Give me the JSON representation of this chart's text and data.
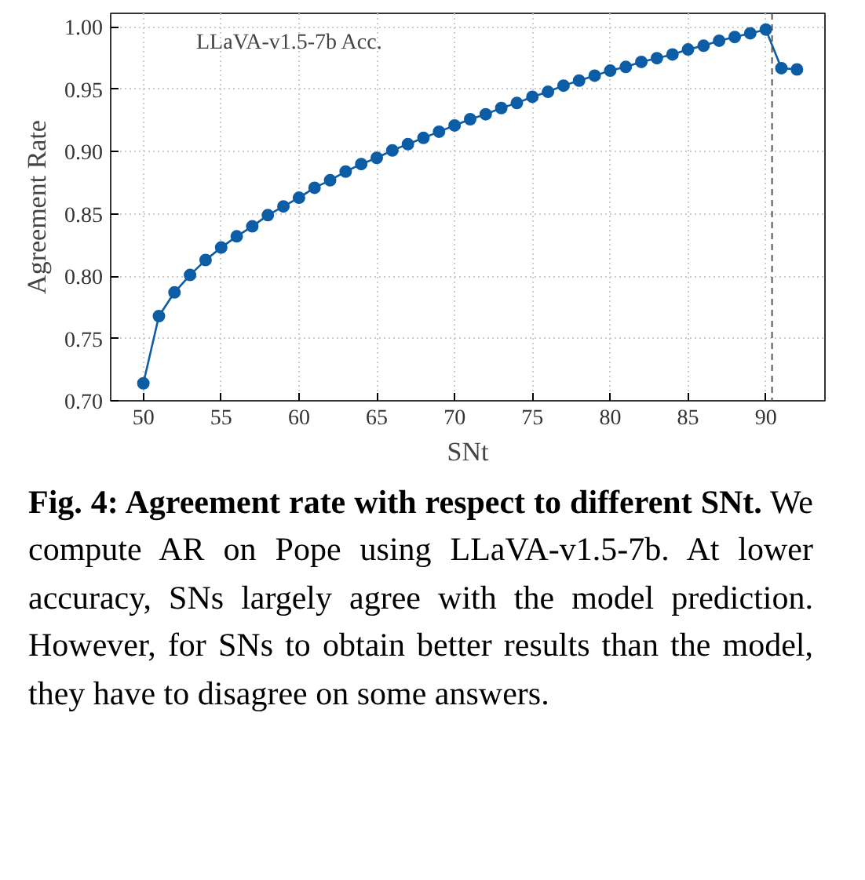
{
  "chart_data": {
    "type": "line",
    "xlabel": "SNt",
    "ylabel": "Agreement Rate",
    "x": [
      50,
      51,
      52,
      53,
      54,
      55,
      56,
      57,
      58,
      59,
      60,
      61,
      62,
      63,
      64,
      65,
      66,
      67,
      68,
      69,
      70,
      71,
      72,
      73,
      74,
      75,
      76,
      77,
      78,
      79,
      80,
      81,
      82,
      83,
      84,
      85,
      86,
      87,
      88,
      89,
      90,
      91,
      92
    ],
    "series": [
      {
        "color": "#0c5da5",
        "values": [
          0.714,
          0.768,
          0.787,
          0.801,
          0.813,
          0.823,
          0.832,
          0.84,
          0.849,
          0.856,
          0.863,
          0.871,
          0.877,
          0.884,
          0.89,
          0.895,
          0.901,
          0.906,
          0.911,
          0.916,
          0.921,
          0.926,
          0.93,
          0.935,
          0.939,
          0.944,
          0.948,
          0.953,
          0.957,
          0.961,
          0.965,
          0.968,
          0.972,
          0.975,
          0.978,
          0.982,
          0.985,
          0.989,
          0.992,
          0.995,
          0.998,
          0.967,
          0.966
        ]
      }
    ],
    "marker": "circle",
    "line_style": "solid",
    "xlim": [
      47.9,
      93.8
    ],
    "ylim": [
      0.7,
      1.011
    ],
    "xticks": [
      50,
      55,
      60,
      65,
      70,
      75,
      80,
      85,
      90
    ],
    "yticks": [
      {
        "value": 0.7,
        "label": "0.70"
      },
      0.75,
      {
        "value": 0.8,
        "label": "0.80"
      },
      0.85,
      {
        "value": 0.9,
        "label": "0.90"
      },
      0.95,
      {
        "value": 1.0,
        "label": "1.00"
      }
    ],
    "ref_lines": [
      {
        "axis": "x",
        "value": 90.4,
        "label": "LLaVA-v1.5-7b Acc.",
        "color": "#555555",
        "line_style": "dashed"
      }
    ],
    "grid": true,
    "legend": "top left",
    "annotations": [
      "Fig. 4: Agreement rate with respect to different SNt.",
      "We compute AR on Pope using LLaVA-v1.5-7b. At lower accuracy, SNs largely agree with the model prediction. However, for SNs to obtain better results than the model, they have to disagree on some answers."
    ]
  }
}
